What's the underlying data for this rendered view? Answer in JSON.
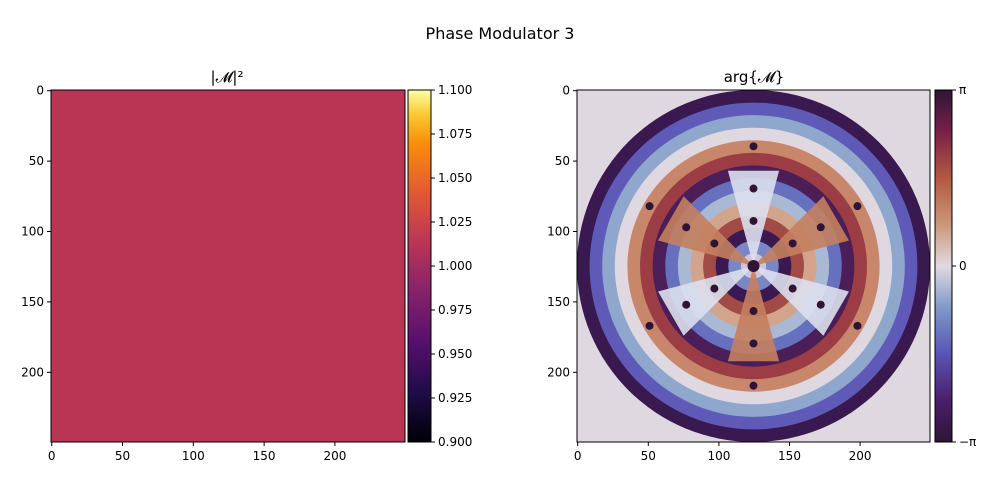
{
  "figure": {
    "title": "Phase Modulator 3"
  },
  "chart_data": [
    {
      "type": "heatmap",
      "title": "|𝓜|²",
      "matrix_shape": [
        250,
        250
      ],
      "uniform_value": 1.0,
      "cell_color": "#b93553",
      "xticks": [
        0,
        50,
        100,
        150,
        200
      ],
      "yticks": [
        0,
        50,
        100,
        150,
        200
      ],
      "xticklabels": [
        "0",
        "50",
        "100",
        "150",
        "200"
      ],
      "yticklabels": [
        "0",
        "50",
        "100",
        "150",
        "200"
      ],
      "colorbar": {
        "colormap": "inferno",
        "range": [
          0.9,
          1.1
        ],
        "ticks": [
          0.9,
          0.925,
          0.95,
          0.975,
          1.0,
          1.025,
          1.05,
          1.075,
          1.1
        ],
        "ticklabels": [
          "0.900",
          "0.925",
          "0.950",
          "0.975",
          "1.000",
          "1.025",
          "1.050",
          "1.075",
          "1.100"
        ]
      }
    },
    {
      "type": "heatmap",
      "title": "arg{𝓜}",
      "matrix_shape": [
        250,
        250
      ],
      "description_symmetry": "6-fold rotational",
      "xticks": [
        0,
        50,
        100,
        150,
        200
      ],
      "yticks": [
        0,
        50,
        100,
        150,
        200
      ],
      "xticklabels": [
        "0",
        "50",
        "100",
        "150",
        "200"
      ],
      "yticklabels": [
        "0",
        "50",
        "100",
        "150",
        "200"
      ],
      "colorbar": {
        "colormap": "twilight_shifted",
        "range": [
          -3.14159,
          3.14159
        ],
        "ticks": [
          -3.14159,
          0,
          3.14159
        ],
        "ticklabels": [
          "−π",
          "0",
          "π"
        ]
      }
    }
  ]
}
